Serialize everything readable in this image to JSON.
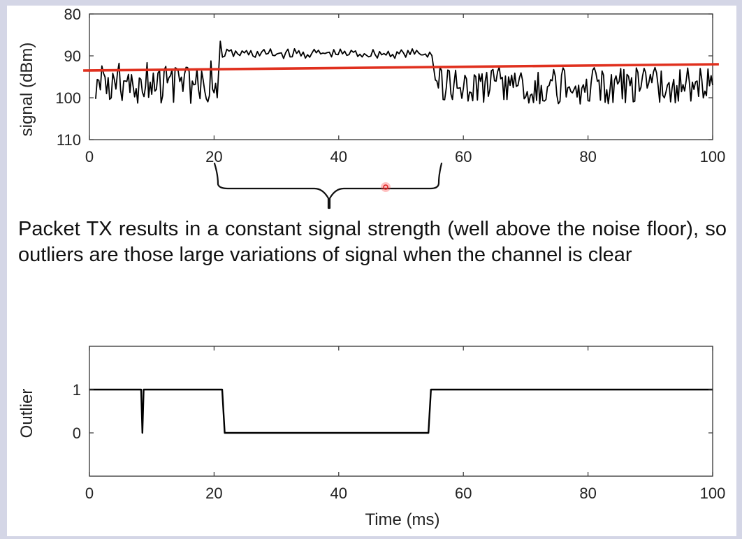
{
  "caption": "Packet TX results in a constant signal strength (well above the noise floor), so outliers are those large variations of signal when the channel is clear",
  "chart_data": [
    {
      "type": "line",
      "ylabel": "signal (dBm)",
      "xlabel": "",
      "xlim": [
        0,
        100
      ],
      "ylim": [
        80,
        110
      ],
      "y_reversed": true,
      "xticks": [
        0,
        20,
        40,
        60,
        80,
        100
      ],
      "yticks": [
        80,
        90,
        100,
        110
      ],
      "grid": false,
      "series": [
        {
          "color": "#000000",
          "segments": [
            {
              "x_start": 1,
              "x_end": 20.5,
              "mean": 97,
              "spread": 4.5,
              "kind": "noise"
            },
            {
              "x_start": 21,
              "x_end": 55,
              "mean": 89.5,
              "spread": 1.2,
              "kind": "packet_tx"
            },
            {
              "x_start": 55.5,
              "x_end": 100,
              "mean": 97,
              "spread": 4.5,
              "kind": "noise"
            }
          ],
          "x": [
            0.8,
            2,
            3,
            4,
            5,
            6,
            7,
            8,
            9,
            10,
            11,
            12,
            13,
            14,
            15,
            16,
            17,
            18,
            19,
            20,
            20.5,
            21,
            22,
            23,
            24,
            25,
            26,
            27,
            28,
            29,
            30,
            32,
            34,
            36,
            38,
            40,
            42,
            44,
            46,
            48,
            50,
            52,
            54,
            54.8,
            55.5,
            56,
            57,
            58,
            59,
            60,
            61,
            62,
            63,
            64,
            65,
            66,
            67,
            68,
            69,
            70,
            71,
            72,
            73,
            74,
            75,
            76,
            77,
            78,
            79,
            80,
            81,
            82,
            83,
            84,
            85,
            86,
            87,
            88,
            89,
            90,
            91,
            92,
            93,
            94,
            95,
            96,
            97,
            98,
            99,
            99.9
          ],
          "y": [
            95,
            101,
            93,
            99,
            96,
            102,
            94,
            97,
            100,
            93,
            98,
            101,
            92,
            99,
            96,
            100,
            94,
            97,
            99,
            95,
            102,
            96,
            86.5,
            90,
            88,
            89.5,
            91,
            88,
            90,
            89,
            90.5,
            88.5,
            90,
            89,
            90.5,
            88.5,
            90,
            89,
            90.5,
            89,
            90,
            88.5,
            89.5,
            88,
            100,
            96,
            101,
            93,
            99,
            97,
            100,
            94,
            98,
            101,
            95,
            99,
            96,
            100,
            93,
            98,
            101,
            95,
            97,
            100,
            94,
            99,
            96,
            101,
            93,
            98,
            100,
            95,
            97,
            101,
            94,
            99,
            96,
            102,
            93,
            98,
            100,
            95,
            97,
            101,
            94,
            99,
            96,
            100,
            93,
            99
          ]
        },
        {
          "color": "#e0301e",
          "x": [
            -1,
            101
          ],
          "y": [
            93.5,
            92
          ]
        }
      ],
      "annotations": [
        "bracket spanning x = 20 to 56 beneath the axis"
      ]
    },
    {
      "type": "line",
      "ylabel": "Outlier",
      "xlabel": "Time (ms)",
      "xlim": [
        0,
        100
      ],
      "ylim": [
        -1,
        2
      ],
      "xticks": [
        0,
        20,
        40,
        60,
        80,
        100
      ],
      "yticks": [
        0,
        1
      ],
      "grid": false,
      "series": [
        {
          "color": "#000000",
          "x": [
            0,
            8.3,
            8.5,
            8.7,
            21.3,
            21.7,
            54.4,
            54.8,
            100
          ],
          "y": [
            1,
            1,
            0,
            1,
            1,
            0,
            0,
            1,
            1
          ]
        }
      ]
    }
  ]
}
